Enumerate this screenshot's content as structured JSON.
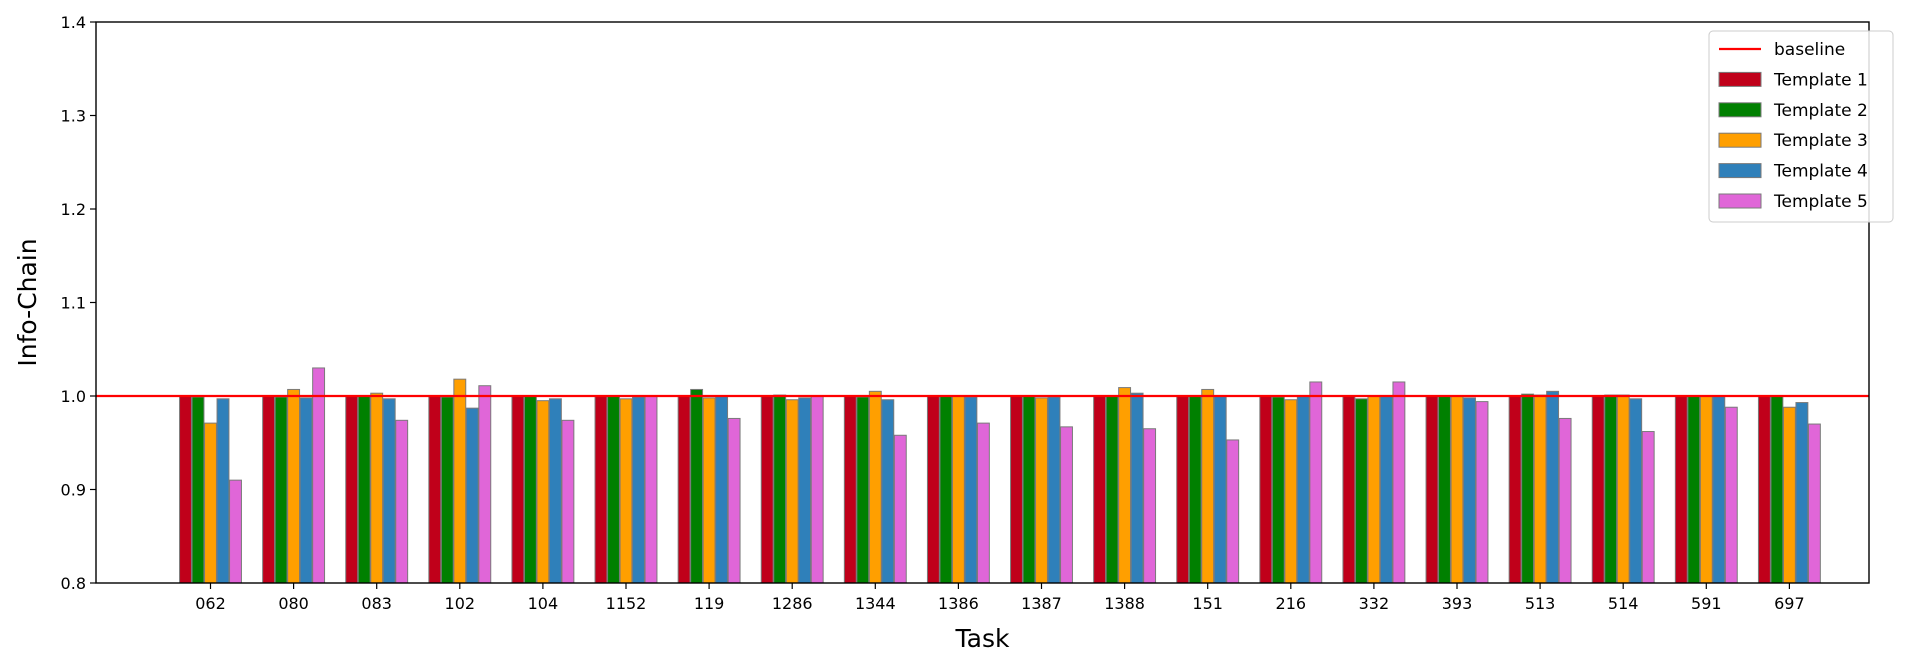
{
  "chart_data": {
    "type": "bar",
    "xlabel": "Task",
    "ylabel": "Info-Chain",
    "ylim": [
      0.8,
      1.4
    ],
    "yticks": [
      "0.8",
      "0.9",
      "1.0",
      "1.1",
      "1.2",
      "1.3",
      "1.4"
    ],
    "categories": [
      "062",
      "080",
      "083",
      "102",
      "104",
      "1152",
      "119",
      "1286",
      "1344",
      "1386",
      "1387",
      "1388",
      "151",
      "216",
      "332",
      "393",
      "513",
      "514",
      "591",
      "697"
    ],
    "baseline": {
      "name": "baseline",
      "value": 1.0,
      "color": "#ff0000"
    },
    "series": [
      {
        "name": "Template 1",
        "color": "#c0001a",
        "values": [
          1.0,
          1.0,
          1.0,
          1.0,
          1.0,
          1.0,
          1.0,
          1.0,
          1.0,
          1.0,
          1.0,
          1.0,
          1.0,
          1.0,
          1.0,
          1.0,
          1.0,
          1.0,
          1.0,
          1.0
        ]
      },
      {
        "name": "Template 2",
        "color": "#008000",
        "values": [
          0.999,
          0.999,
          1.0,
          0.999,
          1.0,
          1.0,
          1.007,
          1.001,
          0.999,
          1.0,
          1.0,
          1.0,
          1.0,
          0.999,
          0.997,
          1.0,
          1.002,
          1.001,
          1.0,
          1.0
        ]
      },
      {
        "name": "Template 3",
        "color": "#ff9f00",
        "values": [
          0.971,
          1.007,
          1.003,
          1.018,
          0.995,
          0.997,
          0.998,
          0.996,
          1.005,
          1.0,
          0.998,
          1.009,
          1.007,
          0.996,
          1.0,
          1.0,
          1.001,
          1.001,
          1.0,
          0.988
        ]
      },
      {
        "name": "Template 4",
        "color": "#2f80ba",
        "values": [
          0.997,
          0.998,
          0.997,
          0.987,
          0.997,
          0.999,
          1.0,
          0.998,
          0.996,
          0.999,
          0.999,
          1.003,
          1.0,
          1.0,
          1.0,
          0.998,
          1.005,
          0.997,
          1.0,
          0.993
        ]
      },
      {
        "name": "Template 5",
        "color": "#e066d8",
        "values": [
          0.91,
          1.03,
          0.974,
          1.011,
          0.974,
          1.0,
          0.976,
          1.0,
          0.958,
          0.971,
          0.967,
          0.965,
          0.953,
          1.015,
          1.015,
          0.994,
          0.976,
          0.962,
          0.988,
          0.97
        ]
      }
    ],
    "legend_position": "top-right",
    "grid": false
  }
}
